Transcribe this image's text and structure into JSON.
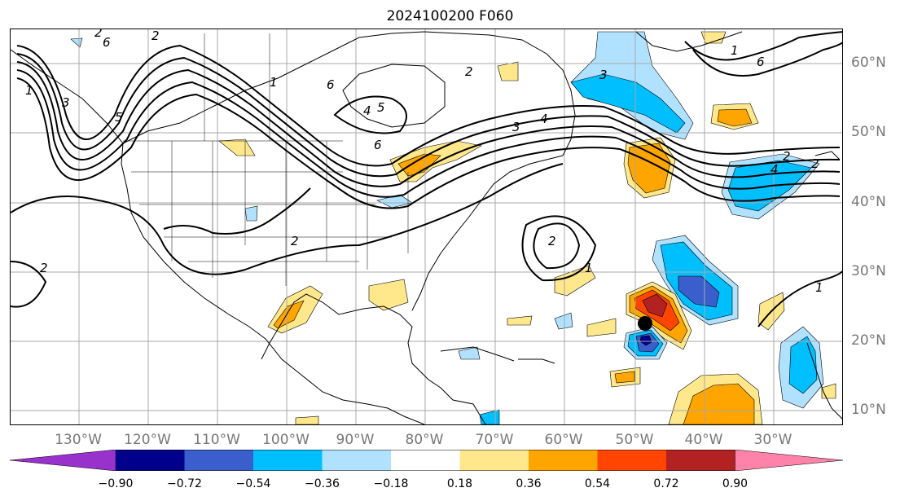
{
  "title": "2024100200 F060",
  "lon_labels": [
    "130°W",
    "120°W",
    "110°W",
    "100°W",
    "90°W",
    "80°W",
    "70°W",
    "60°W",
    "50°W",
    "40°W",
    "30°W"
  ],
  "lat_labels": [
    "60°N",
    "50°N",
    "40°N",
    "30°N",
    "20°N",
    "10°N"
  ],
  "colorbar": {
    "ticks": [
      "−0.90",
      "−0.72",
      "−0.54",
      "−0.36",
      "−0.18",
      "0.18",
      "0.36",
      "0.54",
      "0.72",
      "0.90"
    ],
    "colors": [
      "#9932CC",
      "#00008B",
      "#3A5FCD",
      "#00BFFF",
      "#B0E2FF",
      "#FFFFFF",
      "#FFE88C",
      "#FFA500",
      "#FF4500",
      "#B22222",
      "#FF82AB"
    ]
  },
  "contour_labels": [
    "6",
    "2",
    "6",
    "4",
    "5",
    "2",
    "1",
    "6",
    "3",
    "4",
    "2",
    "3",
    "2",
    "2",
    "6",
    "1",
    "1",
    "3",
    "5",
    "2",
    "1",
    "4",
    "2",
    "2",
    "1"
  ],
  "marker": {
    "name": "storm-center-marker",
    "color": "#000000"
  }
}
